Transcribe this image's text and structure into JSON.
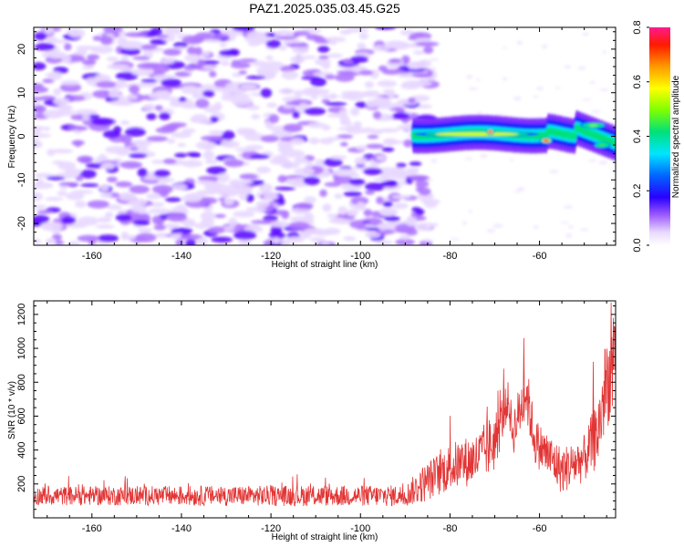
{
  "title": "PAZ1.2025.035.03.45.G25",
  "chart_data": [
    {
      "type": "heatmap",
      "xlabel": "Height of straight line (km)",
      "ylabel": "Frequency (Hz)",
      "xlim": [
        -173,
        -43
      ],
      "ylim": [
        -25,
        25
      ],
      "xticks": [
        -160,
        -140,
        -120,
        -100,
        -80,
        -60
      ],
      "yticks": [
        -20,
        -10,
        0,
        10,
        20
      ],
      "colorbar": {
        "label": "Normalized spectral amplitude",
        "range": [
          0.0,
          0.8
        ],
        "ticks": [
          0.0,
          0.2,
          0.4,
          0.6,
          0.8
        ]
      },
      "features": [
        {
          "x": [
            -88,
            -60
          ],
          "y_center": 0.5,
          "amplitude": 0.55
        },
        {
          "x": [
            -72,
            -70
          ],
          "y_center": 1.0,
          "amplitude": 0.8
        },
        {
          "x": [
            -60,
            -57
          ],
          "y_center": -1.0,
          "amplitude": 0.8
        },
        {
          "x": [
            -51,
            -45
          ],
          "y_center": 2.5,
          "amplitude": 0.5
        },
        {
          "x": [
            -48,
            -44
          ],
          "y_center": -2.0,
          "amplitude": 0.45
        }
      ],
      "background": {
        "x": [
          -173,
          -87
        ],
        "y": [
          -25,
          25
        ],
        "amplitude_max": 0.1
      }
    },
    {
      "type": "line",
      "xlabel": "Height of straight line (km)",
      "ylabel": "SNR (10 * v/v)",
      "xlim": [
        -173,
        -43
      ],
      "ylim": [
        0,
        1280
      ],
      "xticks": [
        -160,
        -140,
        -120,
        -100,
        -80,
        -60
      ],
      "yticks": [
        200,
        400,
        600,
        800,
        1000,
        1200
      ],
      "series": [
        {
          "color": "#e23535",
          "envelope": [
            {
              "x": -173,
              "base": 130,
              "spread": 80
            },
            {
              "x": -90,
              "base": 130,
              "spread": 90
            },
            {
              "x": -86,
              "base": 200,
              "spread": 160
            },
            {
              "x": -80,
              "base": 300,
              "spread": 200
            },
            {
              "x": -74,
              "base": 350,
              "spread": 220
            },
            {
              "x": -70,
              "base": 450,
              "spread": 260
            },
            {
              "x": -67,
              "base": 700,
              "spread": 150
            },
            {
              "x": -66,
              "base": 500,
              "spread": 200
            },
            {
              "x": -63,
              "base": 750,
              "spread": 250
            },
            {
              "x": -61,
              "base": 450,
              "spread": 200
            },
            {
              "x": -55,
              "base": 280,
              "spread": 200
            },
            {
              "x": -50,
              "base": 350,
              "spread": 200
            },
            {
              "x": -47,
              "base": 500,
              "spread": 300
            },
            {
              "x": -45,
              "base": 800,
              "spread": 400
            },
            {
              "x": -43,
              "base": 900,
              "spread": 350
            }
          ]
        }
      ]
    }
  ]
}
